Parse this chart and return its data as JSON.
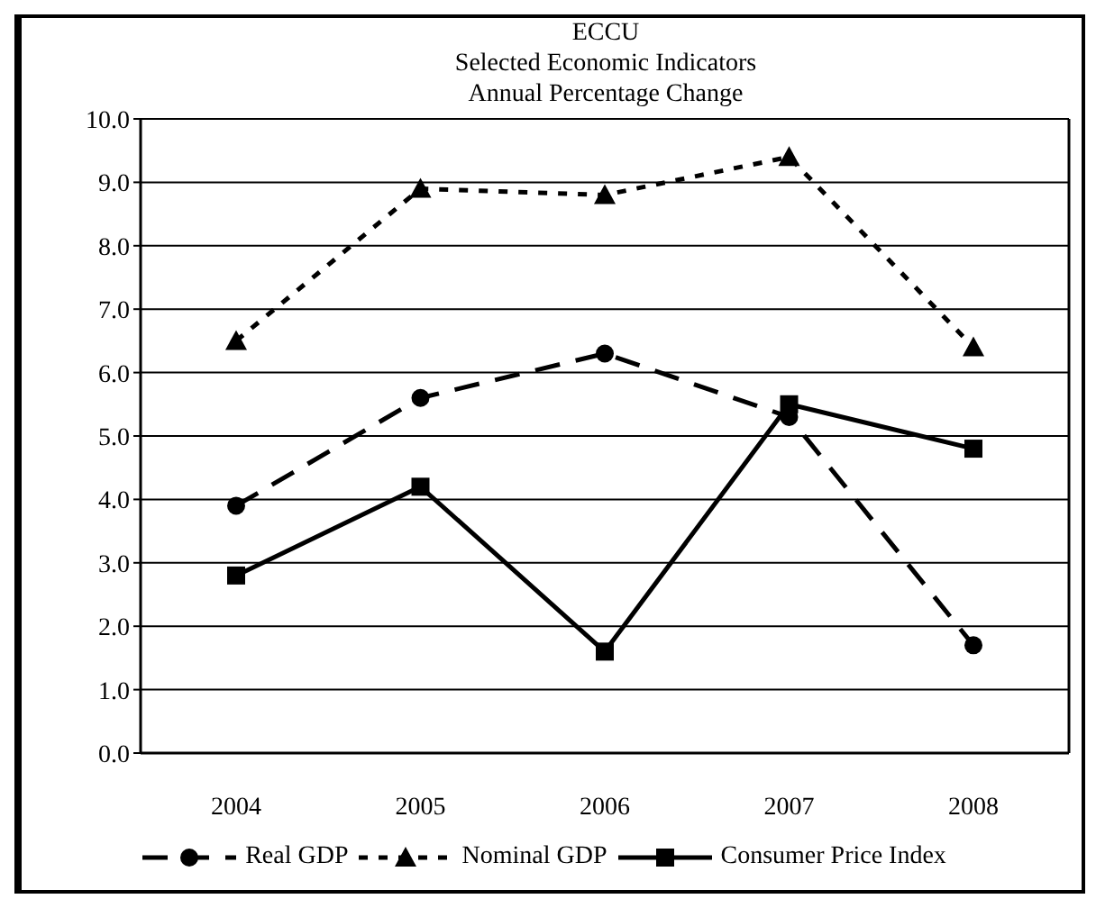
{
  "chart_data": {
    "type": "line",
    "title": "ECCU",
    "subtitle": "Selected Economic Indicators\nAnnual Percentage Change",
    "categories": [
      "2004",
      "2005",
      "2006",
      "2007",
      "2008"
    ],
    "series": [
      {
        "name": "Real GDP",
        "color": "#000000",
        "marker": "circle",
        "line_style": "dashed",
        "values": [
          3.9,
          5.6,
          6.3,
          5.3,
          1.7
        ]
      },
      {
        "name": "Nominal GDP",
        "color": "#000000",
        "marker": "triangle",
        "line_style": "dotted",
        "values": [
          6.5,
          8.9,
          8.8,
          9.4,
          6.4
        ]
      },
      {
        "name": "Consumer Price Index",
        "color": "#000000",
        "marker": "square",
        "line_style": "solid",
        "values": [
          2.8,
          4.2,
          1.6,
          5.5,
          4.8
        ]
      }
    ],
    "ylim": [
      0,
      10
    ],
    "yticks": [
      {
        "value": 0,
        "label": "0.0"
      },
      {
        "value": 1,
        "label": "1.0"
      },
      {
        "value": 2,
        "label": "2.0"
      },
      {
        "value": 3,
        "label": "3.0"
      },
      {
        "value": 4,
        "label": "4.0"
      },
      {
        "value": 5,
        "label": "5.0"
      },
      {
        "value": 6,
        "label": "6.0"
      },
      {
        "value": 7,
        "label": "7.0"
      },
      {
        "value": 8,
        "label": "8.0"
      },
      {
        "value": 9,
        "label": "9.0"
      },
      {
        "value": 10,
        "label": "10.0"
      }
    ],
    "grid": "y",
    "legend": "bottom"
  }
}
